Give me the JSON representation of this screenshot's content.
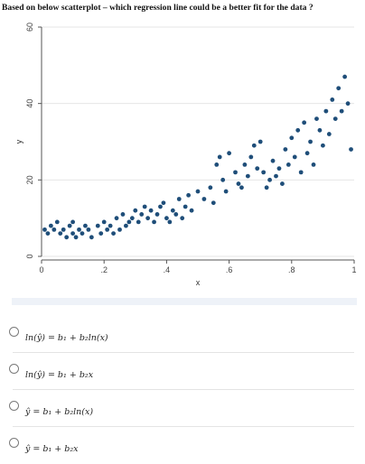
{
  "question": "Based on below scatterplot – which regression line could be a better fit for the data ?",
  "chart_data": {
    "type": "scatter",
    "title": "",
    "xlabel": "x",
    "ylabel": "y",
    "xlim": [
      0,
      1
    ],
    "ylim": [
      0,
      60
    ],
    "x_ticks": [
      "0",
      ".2",
      ".4",
      ".6",
      ".8",
      "1"
    ],
    "y_ticks": [
      "0",
      "20",
      "40",
      "60"
    ],
    "grid": true,
    "point_color": "#1f4e79",
    "x": [
      0.01,
      0.02,
      0.03,
      0.04,
      0.05,
      0.06,
      0.07,
      0.08,
      0.09,
      0.1,
      0.1,
      0.11,
      0.12,
      0.13,
      0.14,
      0.15,
      0.16,
      0.18,
      0.19,
      0.2,
      0.21,
      0.22,
      0.23,
      0.24,
      0.25,
      0.26,
      0.27,
      0.28,
      0.29,
      0.3,
      0.31,
      0.32,
      0.33,
      0.34,
      0.35,
      0.36,
      0.37,
      0.38,
      0.39,
      0.4,
      0.41,
      0.42,
      0.43,
      0.44,
      0.45,
      0.46,
      0.47,
      0.48,
      0.5,
      0.52,
      0.54,
      0.55,
      0.56,
      0.57,
      0.58,
      0.59,
      0.6,
      0.62,
      0.63,
      0.64,
      0.65,
      0.66,
      0.67,
      0.68,
      0.69,
      0.7,
      0.71,
      0.72,
      0.73,
      0.74,
      0.75,
      0.76,
      0.77,
      0.78,
      0.79,
      0.8,
      0.81,
      0.82,
      0.83,
      0.84,
      0.85,
      0.86,
      0.87,
      0.88,
      0.89,
      0.9,
      0.91,
      0.92,
      0.93,
      0.94,
      0.95,
      0.96,
      0.97,
      0.98,
      0.99
    ],
    "y": [
      7,
      6,
      8,
      7,
      9,
      6,
      7,
      5,
      8,
      6,
      9,
      5,
      7,
      6,
      8,
      7,
      5,
      8,
      6,
      9,
      7,
      8,
      6,
      10,
      7,
      11,
      8,
      9,
      10,
      12,
      9,
      11,
      13,
      10,
      12,
      9,
      11,
      13,
      14,
      10,
      9,
      12,
      11,
      15,
      10,
      13,
      16,
      12,
      17,
      15,
      18,
      14,
      24,
      26,
      20,
      17,
      27,
      22,
      19,
      18,
      24,
      21,
      26,
      29,
      23,
      30,
      22,
      18,
      20,
      25,
      21,
      23,
      19,
      28,
      24,
      31,
      26,
      33,
      22,
      35,
      27,
      30,
      24,
      36,
      33,
      29,
      38,
      32,
      41,
      36,
      44,
      38,
      47,
      40,
      28
    ]
  },
  "options": [
    {
      "label": "ln(ŷ) = b₁ + b₂ln(x)"
    },
    {
      "label": "ln(ŷ) = b₁ + b₂x"
    },
    {
      "label": "ŷ = b₁ + b₂ln(x)"
    },
    {
      "label": "ŷ = b₁ + b₂x"
    }
  ]
}
